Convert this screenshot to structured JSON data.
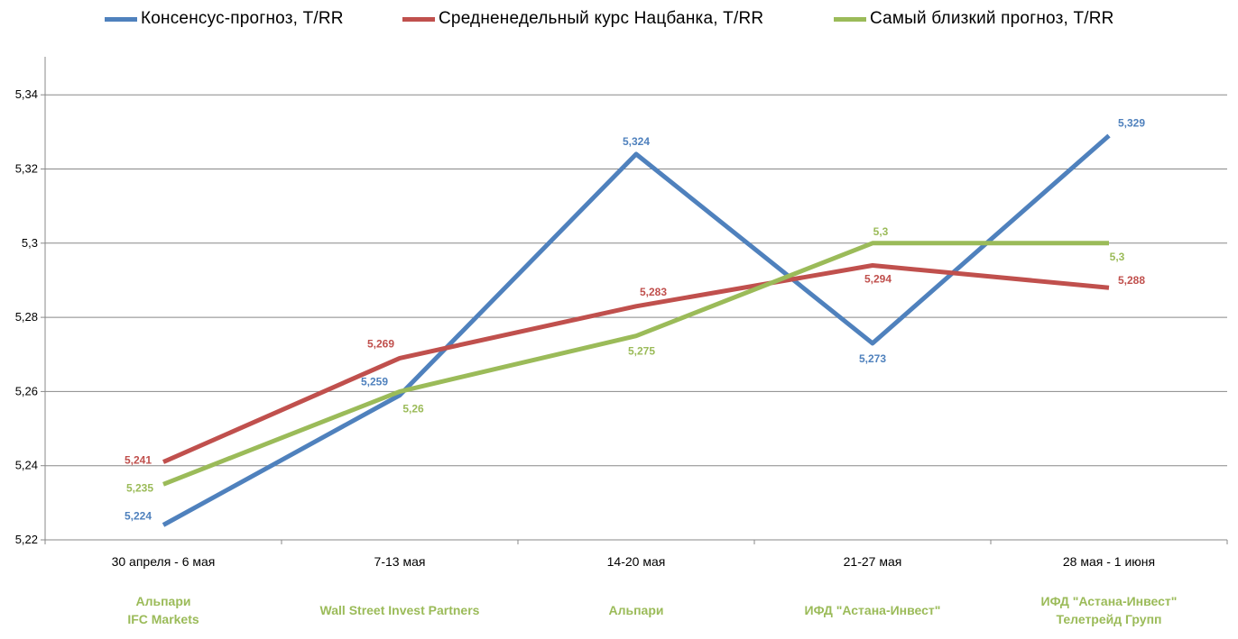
{
  "chart_data": {
    "type": "line",
    "categories": [
      "30 апреля - 6 мая",
      "7-13 мая",
      "14-20 мая",
      "21-27 мая",
      "28 мая - 1 июня"
    ],
    "winners": [
      [
        "Альпари",
        "IFC Markets"
      ],
      [
        "Wall Street Invest Partners"
      ],
      [
        "Альпари"
      ],
      [
        "ИФД \"Астана-Инвест\""
      ],
      [
        "ИФД \"Астана-Инвест\"",
        "Телетрейд Групп"
      ]
    ],
    "series": [
      {
        "name": "Консенсус-прогноз, Т/RR",
        "color": "#4f81bd",
        "values": [
          5.224,
          5.259,
          5.324,
          5.273,
          5.329
        ],
        "labels": [
          "5,224",
          "5,259",
          "5,324",
          "5,273",
          "5,329"
        ]
      },
      {
        "name": "Средненедельный курс Нацбанка, Т/RR",
        "color": "#c0504d",
        "values": [
          5.241,
          5.269,
          5.283,
          5.294,
          5.288
        ],
        "labels": [
          "5,241",
          "5,269",
          "5,283",
          "5,294",
          "5,288"
        ]
      },
      {
        "name": "Самый близкий прогноз, Т/RR",
        "color": "#9bbb59",
        "values": [
          5.235,
          5.26,
          5.275,
          5.3,
          5.3
        ],
        "labels": [
          "5,235",
          "5,26",
          "5,275",
          "5,3",
          "5,3"
        ]
      }
    ],
    "y_ticks": [
      5.22,
      5.24,
      5.26,
      5.28,
      5.3,
      5.32,
      5.34
    ],
    "y_tick_labels": [
      "5,22",
      "5,24",
      "5,26",
      "5,28",
      "5,3",
      "5,32",
      "5,34"
    ],
    "ylim": [
      5.22,
      5.35
    ],
    "grid": true,
    "legend_position": "top"
  }
}
